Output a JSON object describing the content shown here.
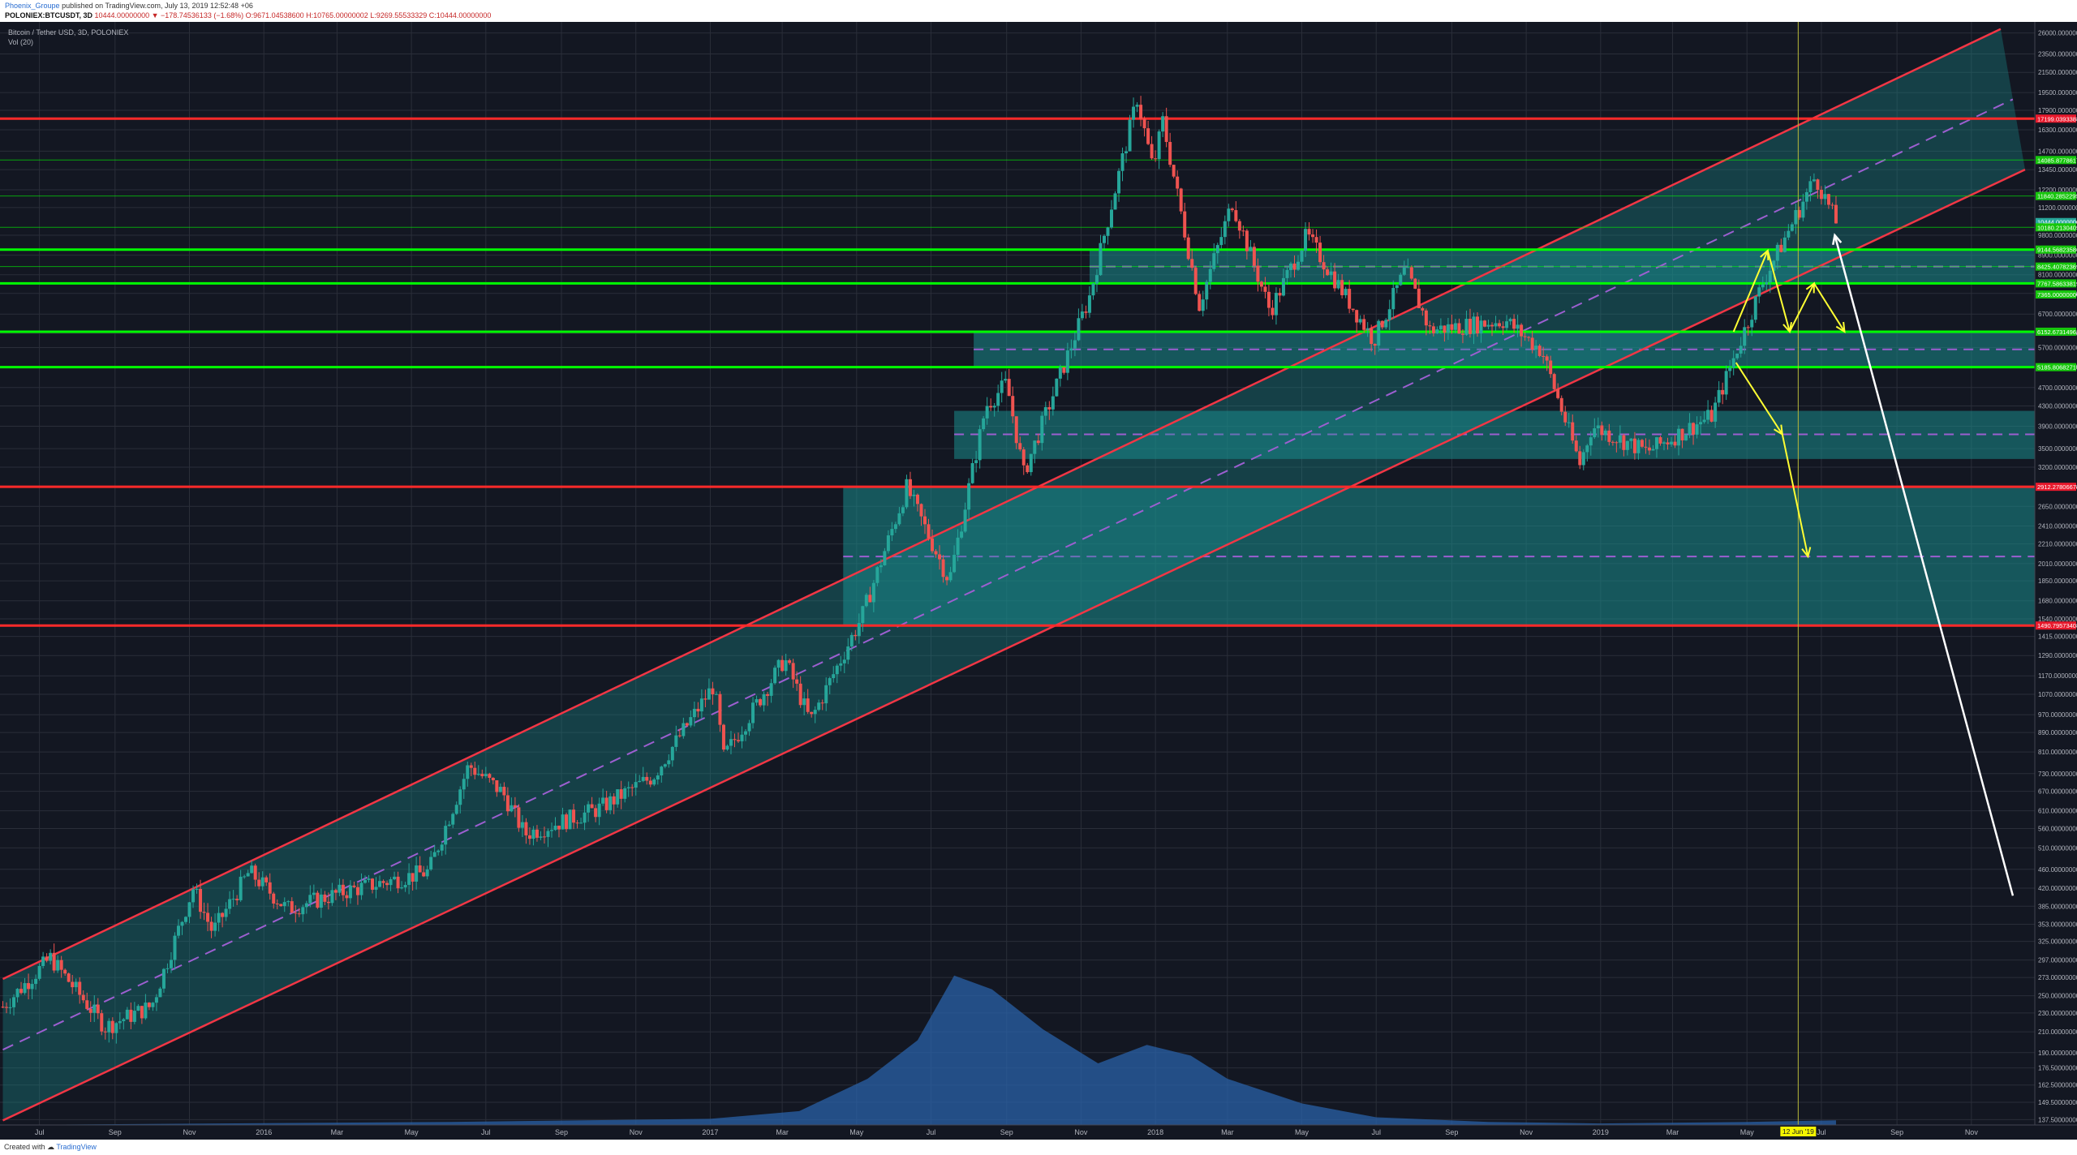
{
  "header": {
    "author": "Phoenix_Groupe",
    "published_text": "published on TradingView.com, July 13, 2019 12:52:48 +06",
    "symbol": "POLONIEX:BTCUSDT, 3D",
    "ohlc_text": "10444.00000000 ▼ −178.74536133 (−1.68%) O:9671.04538600 H:10765.00000002 L:9269.55533329 C:10444.00000000"
  },
  "legend": {
    "title": "Bitcoin / Tether USD, 3D, POLONIEX",
    "vol": "Vol (20)"
  },
  "footer": {
    "created_with": "Created with",
    "brand": "TradingView"
  },
  "colors": {
    "background": "#131722",
    "grid": "#2a2e39",
    "up": "#26a69a",
    "down": "#ef5350",
    "channel_line": "#f23645",
    "channel_mid": "#9c5fd0",
    "channel_fill": "#1a8c8c",
    "support": "#00ff00",
    "resistance": "#ff2a2a",
    "arrow_yellow": "#ffff33",
    "arrow_white": "#ffffff",
    "volume": "#2962a8"
  },
  "chart_data": {
    "type": "candlestick",
    "title": "Bitcoin / Tether USD, 3D, POLONIEX",
    "y_scale": "log",
    "ylim": [
      134,
      27000
    ],
    "x_range": [
      "2015-05-31",
      "2019-12-23"
    ],
    "grid": true,
    "x_tick_labels": [
      {
        "label": "Jul",
        "date": "2015-07-01"
      },
      {
        "label": "Sep",
        "date": "2015-09-01"
      },
      {
        "label": "Nov",
        "date": "2015-11-01"
      },
      {
        "label": "2016",
        "date": "2016-01-01"
      },
      {
        "label": "Mar",
        "date": "2016-03-01"
      },
      {
        "label": "May",
        "date": "2016-05-01"
      },
      {
        "label": "Jul",
        "date": "2016-07-01"
      },
      {
        "label": "Sep",
        "date": "2016-09-01"
      },
      {
        "label": "Nov",
        "date": "2016-11-01"
      },
      {
        "label": "2017",
        "date": "2017-01-01"
      },
      {
        "label": "Mar",
        "date": "2017-03-01"
      },
      {
        "label": "May",
        "date": "2017-05-01"
      },
      {
        "label": "Jul",
        "date": "2017-07-01"
      },
      {
        "label": "Sep",
        "date": "2017-09-01"
      },
      {
        "label": "Nov",
        "date": "2017-11-01"
      },
      {
        "label": "2018",
        "date": "2018-01-01"
      },
      {
        "label": "Mar",
        "date": "2018-03-01"
      },
      {
        "label": "May",
        "date": "2018-05-01"
      },
      {
        "label": "Jul",
        "date": "2018-07-01"
      },
      {
        "label": "Sep",
        "date": "2018-09-01"
      },
      {
        "label": "Nov",
        "date": "2018-11-01"
      },
      {
        "label": "2019",
        "date": "2019-01-01"
      },
      {
        "label": "Mar",
        "date": "2019-03-01"
      },
      {
        "label": "May",
        "date": "2019-05-01"
      },
      {
        "label": "12 Jun '19",
        "date": "2019-06-12",
        "highlight": true
      },
      {
        "label": "Jul",
        "date": "2019-07-01"
      },
      {
        "label": "Sep",
        "date": "2019-09-01"
      },
      {
        "label": "Nov",
        "date": "2019-11-01"
      }
    ],
    "y_tick_labels": [
      "26000.00000000",
      "23500.00000000",
      "21500.00000000",
      "19500.00000000",
      "17900.00000000",
      "16300.00000000",
      "14700.00000000",
      "13450.00000000",
      "12200.00000000",
      "11200.00000000",
      "9800.00000000",
      "8900.00000000",
      "8100.00000000",
      "7400.00000000",
      "6700.00000000",
      "6100.00000000",
      "5700.00000000",
      "5200.00000000",
      "4700.00000000",
      "4300.00000000",
      "3900.00000000",
      "3500.00000000",
      "3200.00000000",
      "2910.00000000",
      "2650.00000000",
      "2410.00000000",
      "2210.00000000",
      "2010.00000000",
      "1850.00000000",
      "1680.00000000",
      "1540.00000000",
      "1415.00000000",
      "1290.00000000",
      "1170.00000000",
      "1070.00000000",
      "970.00000000",
      "890.00000000",
      "810.00000000",
      "730.00000000",
      "670.00000000",
      "610.00000000",
      "560.00000000",
      "510.00000000",
      "460.00000000",
      "420.00000000",
      "385.00000000",
      "353.00000000",
      "325.00000000",
      "297.00000000",
      "273.00000000",
      "250.00000000",
      "230.00000000",
      "210.00000000",
      "190.00000000",
      "176.50000000",
      "162.50000000",
      "149.50000000",
      "137.50000000"
    ],
    "price_level_labels": [
      {
        "text": "17199.03933887",
        "price": 17199,
        "color": "red"
      },
      {
        "text": "14085.87786178",
        "price": 14086,
        "color": "green"
      },
      {
        "text": "11840.28522999",
        "price": 11840,
        "color": "green"
      },
      {
        "text": "10444.00000000",
        "price": 10444,
        "color": "teal"
      },
      {
        "text": "10180.21304058",
        "price": 10180,
        "color": "green"
      },
      {
        "text": "9144.56823586",
        "price": 9145,
        "color": "green"
      },
      {
        "text": "8425.40782369",
        "price": 8425,
        "color": "green"
      },
      {
        "text": "7767.58633819",
        "price": 7768,
        "color": "green"
      },
      {
        "text": "7365.00000000",
        "price": 7365,
        "color": "green"
      },
      {
        "text": "6152.67314962",
        "price": 6153,
        "color": "green"
      },
      {
        "text": "5185.80682718",
        "price": 5186,
        "color": "green"
      },
      {
        "text": "2912.27806674",
        "price": 2912,
        "color": "red"
      },
      {
        "text": "1490.79573408",
        "price": 1491,
        "color": "red"
      }
    ],
    "horizontal_levels": [
      {
        "price": 17199,
        "color": "red",
        "thick": true
      },
      {
        "price": 14086,
        "color": "green",
        "thick": false
      },
      {
        "price": 11840,
        "color": "green",
        "thick": false
      },
      {
        "price": 10180,
        "color": "green",
        "thick": false
      },
      {
        "price": 9145,
        "color": "green",
        "thick": true
      },
      {
        "price": 8425,
        "color": "green",
        "thick": false
      },
      {
        "price": 7768,
        "color": "green",
        "thick": true
      },
      {
        "price": 6153,
        "color": "green",
        "thick": true
      },
      {
        "price": 5186,
        "color": "green",
        "thick": true
      },
      {
        "price": 2912,
        "color": "red",
        "thick": true
      },
      {
        "price": 1491,
        "color": "red",
        "thick": true
      }
    ],
    "zones": [
      {
        "from_date": "2017-11-08",
        "p_low": 7768,
        "p_high": 9145,
        "mid": 8425
      },
      {
        "from_date": "2017-08-05",
        "p_low": 5186,
        "p_high": 6153,
        "mid": 5650
      },
      {
        "from_date": "2017-07-20",
        "p_low": 3330,
        "p_high": 4200,
        "mid": 3750
      },
      {
        "from_date": "2017-04-20",
        "p_low": 1491,
        "p_high": 2912,
        "mid": 2080
      }
    ],
    "channel": {
      "lower": [
        {
          "date": "2015-06-01",
          "price": 137
        },
        {
          "date": "2019-12-15",
          "price": 13450
        }
      ],
      "upper": [
        {
          "date": "2015-06-01",
          "price": 271
        },
        {
          "date": "2019-11-25",
          "price": 26500
        }
      ]
    },
    "ohlc_anchors": [
      {
        "date": "2015-06-01",
        "price": 237
      },
      {
        "date": "2015-07-10",
        "price": 300
      },
      {
        "date": "2015-08-24",
        "price": 215
      },
      {
        "date": "2015-10-01",
        "price": 238
      },
      {
        "date": "2015-11-04",
        "price": 420
      },
      {
        "date": "2015-11-20",
        "price": 340
      },
      {
        "date": "2015-12-20",
        "price": 455
      },
      {
        "date": "2016-01-20",
        "price": 380
      },
      {
        "date": "2016-03-10",
        "price": 415
      },
      {
        "date": "2016-05-15",
        "price": 455
      },
      {
        "date": "2016-06-17",
        "price": 760
      },
      {
        "date": "2016-07-15",
        "price": 665
      },
      {
        "date": "2016-08-02",
        "price": 545
      },
      {
        "date": "2016-10-01",
        "price": 615
      },
      {
        "date": "2016-11-15",
        "price": 720
      },
      {
        "date": "2017-01-04",
        "price": 1120
      },
      {
        "date": "2017-01-12",
        "price": 790
      },
      {
        "date": "2017-03-03",
        "price": 1270
      },
      {
        "date": "2017-03-24",
        "price": 940
      },
      {
        "date": "2017-05-05",
        "price": 1550
      },
      {
        "date": "2017-06-11",
        "price": 2900
      },
      {
        "date": "2017-07-16",
        "price": 1850
      },
      {
        "date": "2017-08-15",
        "price": 4300
      },
      {
        "date": "2017-09-01",
        "price": 4800
      },
      {
        "date": "2017-09-15",
        "price": 3100
      },
      {
        "date": "2017-11-08",
        "price": 7300
      },
      {
        "date": "2017-12-17",
        "price": 19000
      },
      {
        "date": "2017-12-30",
        "price": 13500
      },
      {
        "date": "2018-01-07",
        "price": 17000
      },
      {
        "date": "2018-02-06",
        "price": 7000
      },
      {
        "date": "2018-03-05",
        "price": 11500
      },
      {
        "date": "2018-04-05",
        "price": 6800
      },
      {
        "date": "2018-05-05",
        "price": 9800
      },
      {
        "date": "2018-06-29",
        "price": 5900
      },
      {
        "date": "2018-07-25",
        "price": 8300
      },
      {
        "date": "2018-08-14",
        "price": 6200
      },
      {
        "date": "2018-10-15",
        "price": 6500
      },
      {
        "date": "2018-11-14",
        "price": 5600
      },
      {
        "date": "2018-12-15",
        "price": 3250
      },
      {
        "date": "2018-12-25",
        "price": 3900
      },
      {
        "date": "2019-02-08",
        "price": 3450
      },
      {
        "date": "2019-04-02",
        "price": 4100
      },
      {
        "date": "2019-05-14",
        "price": 7800
      },
      {
        "date": "2019-06-26",
        "price": 13000
      },
      {
        "date": "2019-07-13",
        "price": 10444
      }
    ],
    "volume_profile": [
      {
        "date": "2015-06-01",
        "v": 0.0
      },
      {
        "date": "2016-06-01",
        "v": 0.02
      },
      {
        "date": "2017-01-01",
        "v": 0.04
      },
      {
        "date": "2017-03-15",
        "v": 0.09
      },
      {
        "date": "2017-05-10",
        "v": 0.3
      },
      {
        "date": "2017-06-20",
        "v": 0.55
      },
      {
        "date": "2017-07-20",
        "v": 0.97
      },
      {
        "date": "2017-08-20",
        "v": 0.88
      },
      {
        "date": "2017-10-01",
        "v": 0.62
      },
      {
        "date": "2017-11-15",
        "v": 0.4
      },
      {
        "date": "2017-12-25",
        "v": 0.52
      },
      {
        "date": "2018-01-30",
        "v": 0.45
      },
      {
        "date": "2018-03-01",
        "v": 0.3
      },
      {
        "date": "2018-05-01",
        "v": 0.14
      },
      {
        "date": "2018-07-01",
        "v": 0.05
      },
      {
        "date": "2018-10-01",
        "v": 0.02
      },
      {
        "date": "2019-01-01",
        "v": 0.01
      },
      {
        "date": "2019-05-01",
        "v": 0.02
      },
      {
        "date": "2019-07-13",
        "v": 0.03
      }
    ],
    "arrows_yellow": [
      [
        {
          "date": "2019-04-20",
          "price": 6153
        },
        {
          "date": "2019-05-18",
          "price": 9100
        }
      ],
      [
        {
          "date": "2019-05-18",
          "price": 9100
        },
        {
          "date": "2019-06-05",
          "price": 6153
        }
      ],
      [
        {
          "date": "2019-06-05",
          "price": 6153
        },
        {
          "date": "2019-06-25",
          "price": 7768
        }
      ],
      [
        {
          "date": "2019-06-25",
          "price": 7768
        },
        {
          "date": "2019-07-20",
          "price": 6153
        }
      ],
      [
        {
          "date": "2019-04-22",
          "price": 5300
        },
        {
          "date": "2019-05-30",
          "price": 3750
        }
      ],
      [
        {
          "date": "2019-05-30",
          "price": 3750
        },
        {
          "date": "2019-06-20",
          "price": 2080
        }
      ]
    ],
    "arrow_white": [
      {
        "date": "2019-12-05",
        "price": 405
      },
      {
        "date": "2019-07-12",
        "price": 9800
      }
    ],
    "vertical_marker": {
      "date": "2019-06-12",
      "color": "#b8b83a"
    }
  }
}
